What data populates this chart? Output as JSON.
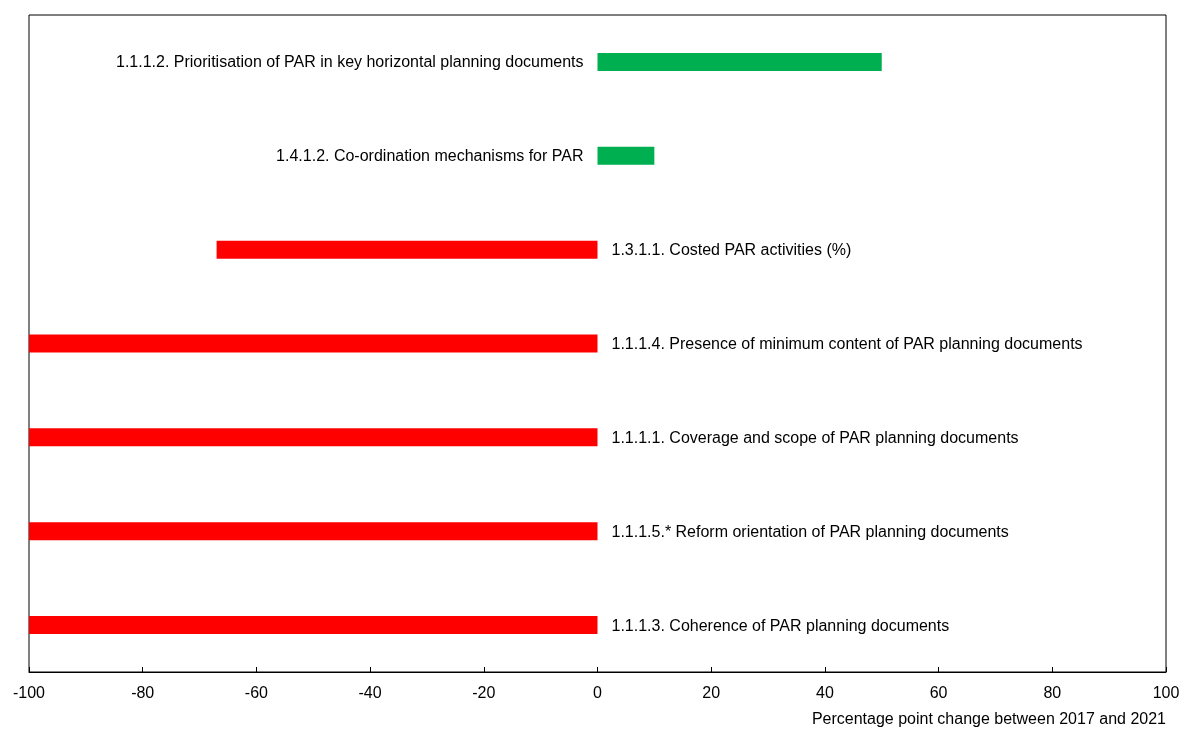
{
  "chart_data": {
    "type": "bar",
    "orientation": "horizontal",
    "xlabel": "Percentage point change between 2017 and 2021",
    "categories": [
      "1.1.1.2. Prioritisation of PAR in key horizontal planning documents",
      "1.4.1.2. Co-ordination mechanisms for PAR",
      "1.3.1.1. Costed PAR activities (%)",
      "1.1.1.4. Presence of minimum content of PAR planning documents",
      "1.1.1.1. Coverage and scope of PAR planning documents",
      "1.1.1.5.* Reform orientation of PAR planning documents",
      "1.1.1.3. Coherence of PAR planning documents"
    ],
    "values": [
      50,
      10,
      -67,
      -100,
      -100,
      -100,
      -100
    ],
    "colors": [
      "#00b050",
      "#00b050",
      "#ff0000",
      "#ff0000",
      "#ff0000",
      "#ff0000",
      "#ff0000"
    ],
    "xlim": [
      -100,
      100
    ],
    "xticks": [
      -100,
      -80,
      -60,
      -40,
      -20,
      0,
      20,
      40,
      60,
      80,
      100
    ],
    "grid": false
  }
}
